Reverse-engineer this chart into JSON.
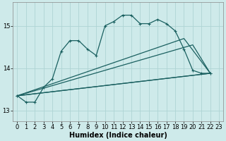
{
  "xlabel": "Humidex (Indice chaleur)",
  "bg_color": "#ceeaea",
  "grid_color": "#aed4d4",
  "line_color": "#1a6060",
  "xlim": [
    -0.5,
    23.5
  ],
  "ylim": [
    12.75,
    15.55
  ],
  "yticks": [
    13,
    14,
    15
  ],
  "xticks": [
    0,
    1,
    2,
    3,
    4,
    5,
    6,
    7,
    8,
    9,
    10,
    11,
    12,
    13,
    14,
    15,
    16,
    17,
    18,
    19,
    20,
    21,
    22,
    23
  ],
  "curve_x": [
    0,
    1,
    2,
    3,
    4,
    5,
    6,
    7,
    8,
    9,
    10,
    11,
    12,
    13,
    14,
    15,
    16,
    17,
    18,
    19,
    20,
    21,
    22
  ],
  "curve_y": [
    13.35,
    13.2,
    13.2,
    13.55,
    13.75,
    14.4,
    14.65,
    14.65,
    14.45,
    14.3,
    15.0,
    15.1,
    15.25,
    15.25,
    15.05,
    15.05,
    15.15,
    15.05,
    14.88,
    14.45,
    13.95,
    13.88,
    13.88
  ],
  "line1_x": [
    0,
    22
  ],
  "line1_y": [
    13.35,
    13.88
  ],
  "line2_x": [
    0,
    22
  ],
  "line2_y": [
    13.35,
    13.88
  ],
  "line3_x": [
    0,
    19,
    22
  ],
  "line3_y": [
    13.35,
    14.7,
    13.88
  ],
  "line4_x": [
    0,
    20,
    22
  ],
  "line4_y": [
    13.35,
    14.55,
    13.88
  ],
  "tick_fontsize": 6,
  "xlabel_fontsize": 7
}
